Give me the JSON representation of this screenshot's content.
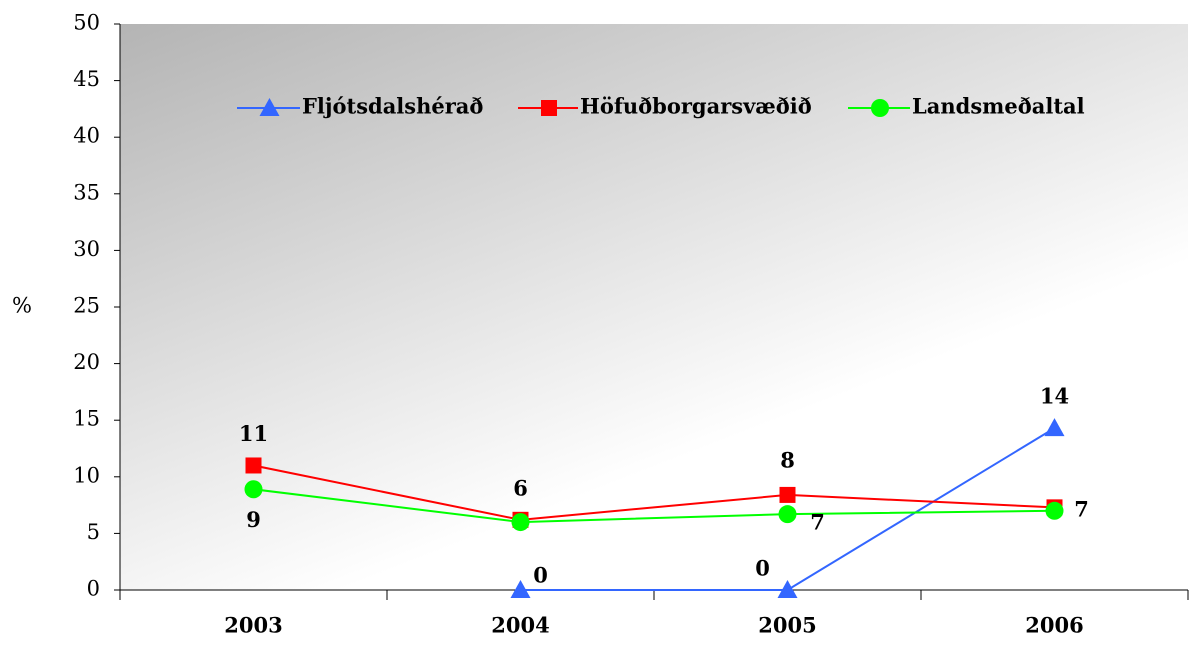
{
  "chart_data": {
    "type": "line",
    "y_label": "%",
    "categories": [
      "2003",
      "2004",
      "2005",
      "2006"
    ],
    "series": [
      {
        "name": "Fljótsdalshérað",
        "color": "#3366ff",
        "marker": "triangle",
        "values": [
          null,
          0,
          0,
          14.3
        ],
        "value_labels": [
          null,
          "0",
          "0",
          "14"
        ]
      },
      {
        "name": "Höfuðborgarsvæðið",
        "color": "#ff0000",
        "marker": "square",
        "values": [
          11.0,
          6.2,
          8.4,
          7.3
        ],
        "value_labels": [
          "11",
          "6",
          "8",
          null
        ]
      },
      {
        "name": "Landsmeðaltal",
        "color": "#00ff00",
        "marker": "circle",
        "values": [
          8.9,
          6.0,
          6.7,
          7.0
        ],
        "value_labels": [
          "9",
          null,
          "7",
          "7"
        ]
      }
    ],
    "ylim": [
      0,
      50
    ],
    "yticks": [
      0,
      5,
      10,
      15,
      20,
      25,
      30,
      35,
      40,
      45,
      50
    ]
  }
}
